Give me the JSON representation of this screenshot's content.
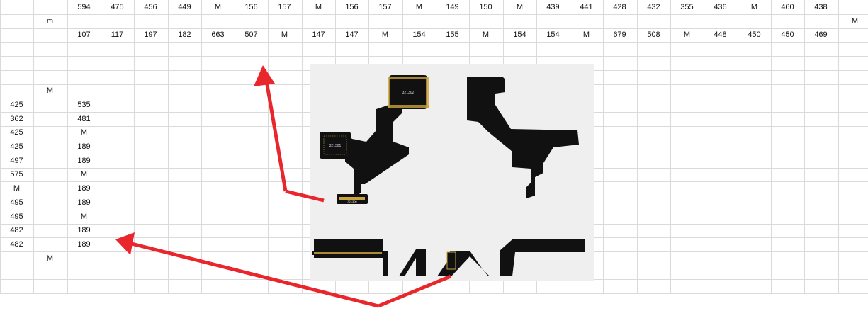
{
  "sheet": {
    "row1": [
      "594",
      "475",
      "456",
      "449",
      "M",
      "156",
      "157",
      "M",
      "156",
      "157",
      "M",
      "149",
      "150",
      "M",
      "439",
      "441",
      "428",
      "432",
      "355",
      "436",
      "M",
      "460",
      "438"
    ],
    "row2_marker": "m",
    "row2_right": "M",
    "row3": [
      "107",
      "117",
      "197",
      "182",
      "663",
      "507",
      "M",
      "147",
      "147",
      "M",
      "154",
      "155",
      "M",
      "154",
      "154",
      "M",
      "679",
      "508",
      "M",
      "448",
      "450",
      "450",
      "469"
    ],
    "marker_top": "M",
    "col_a": [
      "425",
      "362",
      "425",
      "425",
      "497",
      "575",
      "M",
      "495",
      "495",
      "482",
      "482"
    ],
    "col_c": [
      "535",
      "481",
      "M",
      "189",
      "189",
      "M",
      "189",
      "189",
      "M",
      "189",
      "189"
    ],
    "marker_bottom": "M"
  },
  "image": {
    "chip1_label": "321302",
    "chip2_label": "321301",
    "connector_label": "321300"
  },
  "colors": {
    "arrow": "#e8262b",
    "pcb": "#111111",
    "overlay_bg": "#efefef",
    "gold": "#c9a33a"
  }
}
